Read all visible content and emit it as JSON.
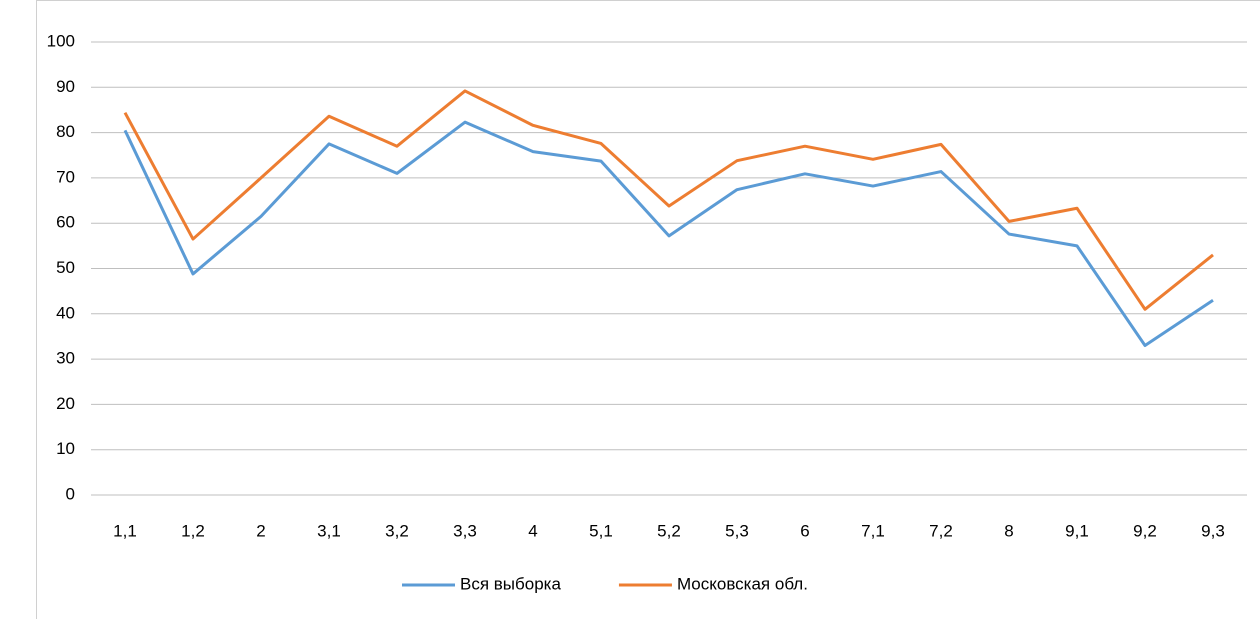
{
  "chart_data": {
    "type": "line",
    "categories": [
      "1,1",
      "1,2",
      "2",
      "3,1",
      "3,2",
      "3,3",
      "4",
      "5,1",
      "5,2",
      "5,3",
      "6",
      "7,1",
      "7,2",
      "8",
      "9,1",
      "9,2",
      "9,3"
    ],
    "series": [
      {
        "name": "Вся выборка",
        "color": "#5b9bd5",
        "values": [
          80.5,
          48.8,
          61.5,
          77.5,
          71,
          82.3,
          75.8,
          73.7,
          57.2,
          67.4,
          70.9,
          68.2,
          71.4,
          57.6,
          55,
          33,
          43
        ]
      },
      {
        "name": "Московская обл.",
        "color": "#ed7d31",
        "values": [
          84.4,
          56.5,
          70,
          83.6,
          77,
          89.2,
          81.6,
          77.6,
          63.8,
          73.8,
          77,
          74.1,
          77.4,
          60.4,
          63.3,
          41,
          53
        ]
      }
    ],
    "ylim": [
      0,
      100
    ],
    "yticks": [
      0,
      10,
      20,
      30,
      40,
      50,
      60,
      70,
      80,
      90,
      100
    ],
    "grid": true,
    "legend": "bottom"
  }
}
